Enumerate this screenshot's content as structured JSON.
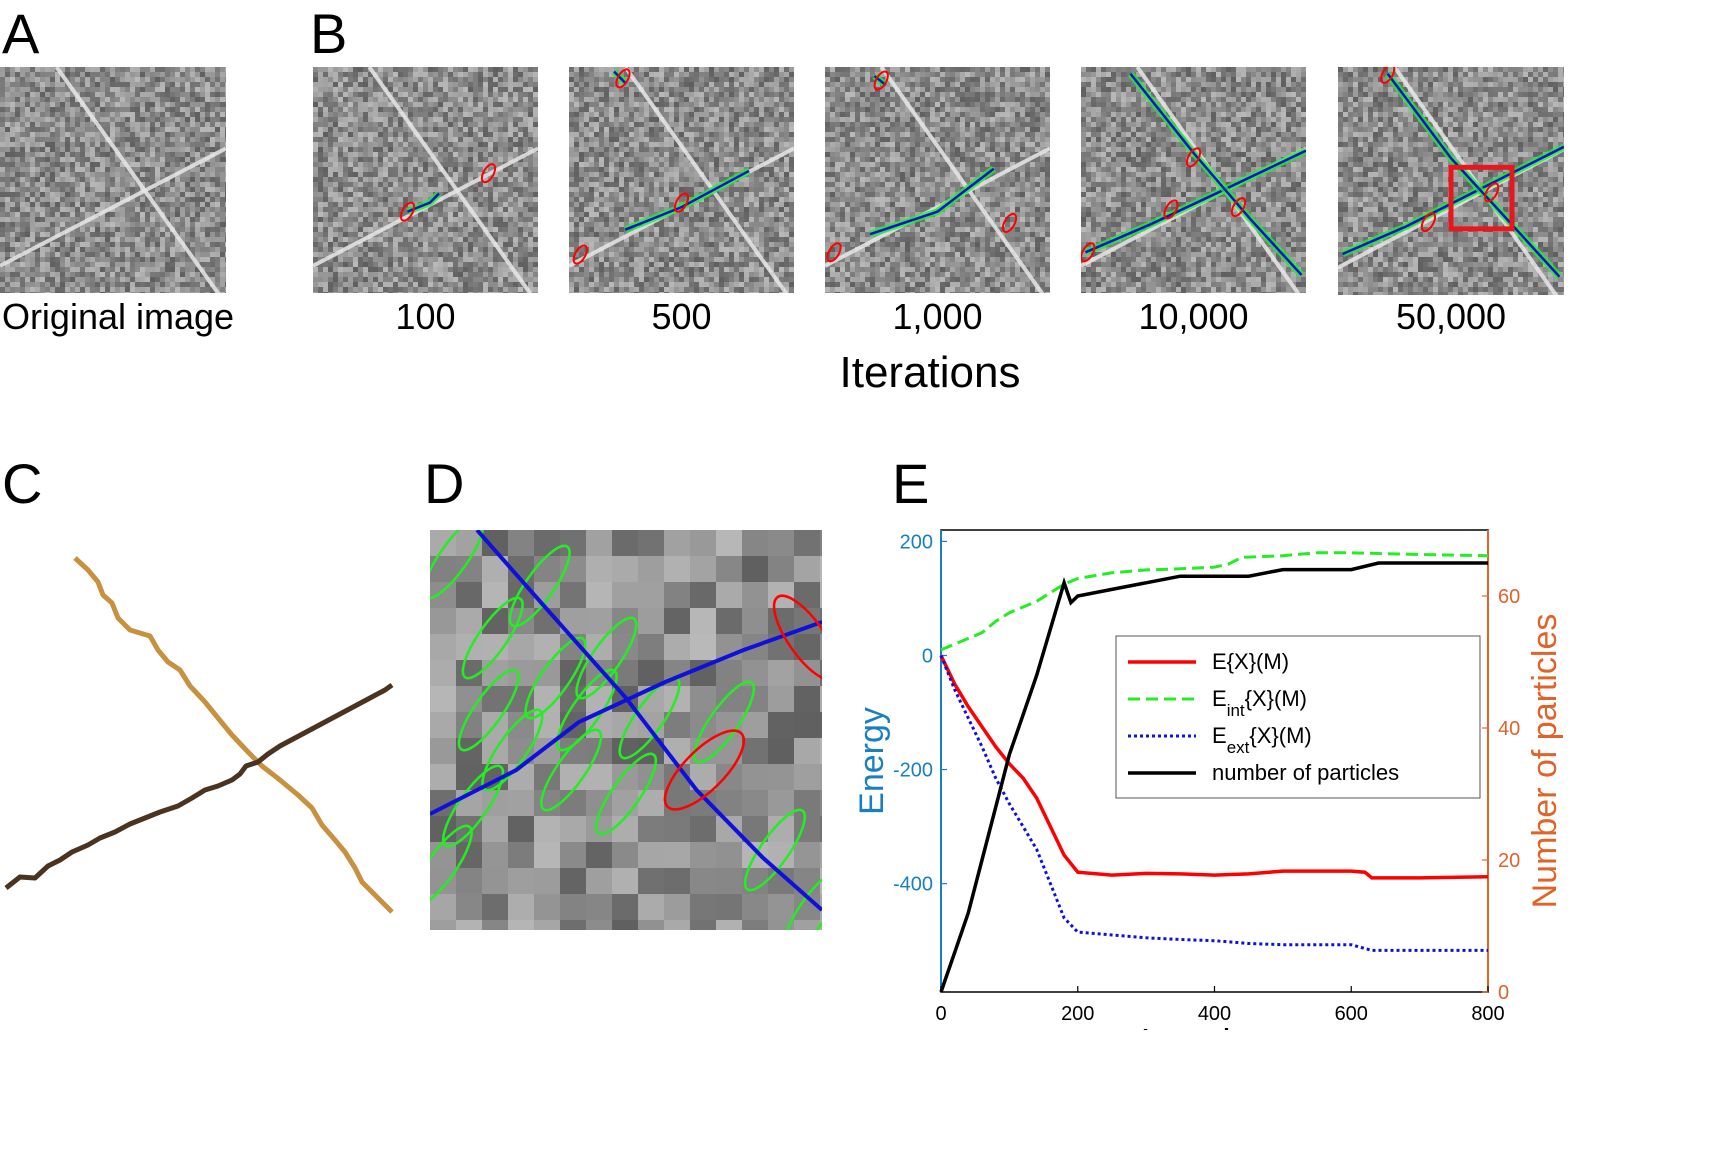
{
  "panels": {
    "A": {
      "letter": "A",
      "caption": "Original image"
    },
    "B": {
      "letter": "B",
      "iterations": [
        "100",
        "500",
        "1,000",
        "10,000",
        "50,000"
      ],
      "xlabel": "Iterations"
    },
    "C": {
      "letter": "C"
    },
    "D": {
      "letter": "D"
    },
    "E": {
      "letter": "E"
    }
  },
  "colors": {
    "energy_axis": "#1a7fc1",
    "particles_axis": "#e0632a",
    "total": "#ff0000",
    "internal": "#22ee22",
    "external": "#1010dd",
    "particles": "#000000",
    "curve_1": "#c8913f",
    "curve_2": "#4a3320",
    "highlight_box": "#e8161e"
  },
  "chart_data": {
    "type": "line",
    "xlabel": "Iterations",
    "ylabel_left": "Energy",
    "ylabel_right": "Number of particles",
    "xlim": [
      0,
      800
    ],
    "ylim_left": [
      -590,
      220
    ],
    "ylim_right": [
      0,
      70
    ],
    "x_ticks": [
      "0",
      "200",
      "400",
      "600",
      "800"
    ],
    "y_ticks_left": [
      "200",
      "0",
      "-200",
      "-400"
    ],
    "y_ticks_left_values": [
      200,
      0,
      -200,
      -400
    ],
    "y_ticks_right": [
      "60",
      "40",
      "20",
      "0"
    ],
    "y_ticks_right_values": [
      60,
      40,
      20,
      0
    ],
    "legend_position": "center-right",
    "series": [
      {
        "name": "E{X}(M)",
        "axis": "left",
        "style": "solid",
        "x": [
          0,
          20,
          40,
          60,
          80,
          100,
          120,
          140,
          160,
          180,
          200,
          250,
          300,
          350,
          400,
          450,
          500,
          550,
          600,
          620,
          630,
          700,
          800
        ],
        "y": [
          0,
          -50,
          -90,
          -125,
          -160,
          -190,
          -215,
          -250,
          -300,
          -350,
          -380,
          -385,
          -382,
          -383,
          -385,
          -383,
          -378,
          -378,
          -378,
          -380,
          -390,
          -390,
          -388
        ]
      },
      {
        "name": "E_int{X}(M)",
        "axis": "left",
        "style": "dashed",
        "x": [
          0,
          20,
          40,
          60,
          80,
          100,
          120,
          140,
          160,
          180,
          200,
          250,
          300,
          350,
          400,
          420,
          440,
          500,
          550,
          600,
          700,
          800
        ],
        "y": [
          10,
          20,
          30,
          40,
          60,
          75,
          85,
          95,
          110,
          125,
          135,
          145,
          150,
          152,
          155,
          160,
          172,
          175,
          180,
          180,
          177,
          175
        ]
      },
      {
        "name": "E_ext{X}(M)",
        "axis": "left",
        "style": "dotted",
        "x": [
          0,
          20,
          40,
          60,
          80,
          100,
          120,
          140,
          160,
          180,
          200,
          250,
          300,
          350,
          400,
          450,
          500,
          600,
          630,
          700,
          800
        ],
        "y": [
          0,
          -60,
          -110,
          -160,
          -215,
          -260,
          -300,
          -340,
          -400,
          -460,
          -485,
          -490,
          -495,
          -498,
          -500,
          -505,
          -507,
          -507,
          -517,
          -517,
          -517
        ]
      },
      {
        "name": "number of particles",
        "axis": "right",
        "style": "solid",
        "x": [
          0,
          20,
          40,
          60,
          80,
          100,
          120,
          140,
          160,
          180,
          190,
          200,
          250,
          300,
          350,
          400,
          450,
          500,
          550,
          600,
          640,
          700,
          800
        ],
        "y": [
          0,
          6,
          12,
          20,
          28,
          36,
          42,
          48,
          55,
          62,
          59,
          60,
          61,
          62,
          63,
          63,
          63,
          64,
          64,
          64,
          65,
          65,
          65
        ]
      }
    ]
  }
}
